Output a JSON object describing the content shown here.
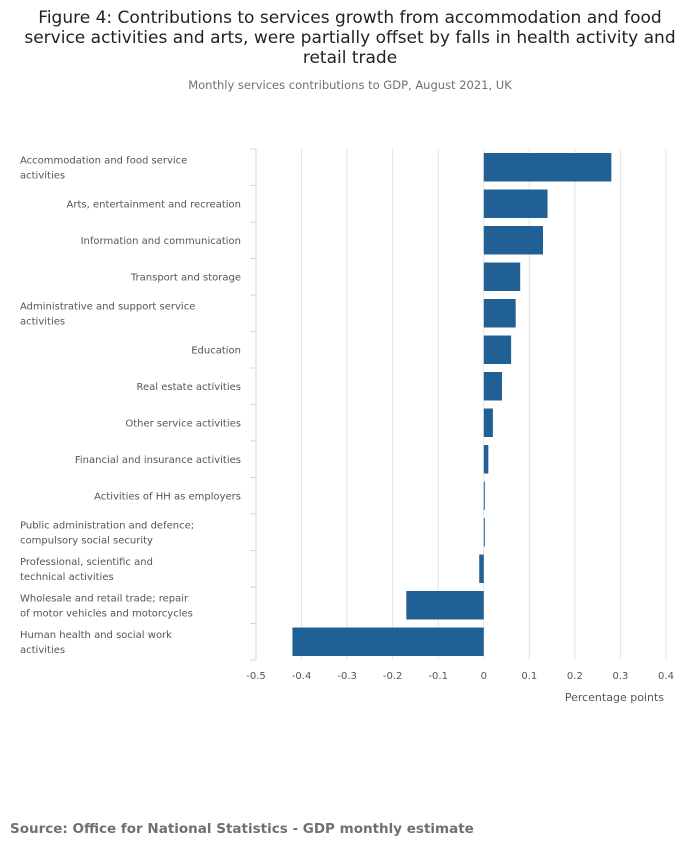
{
  "title": "Figure 4: Contributions to services growth from accommodation and food service activities and arts, were partially offset by falls in health activity and retail trade",
  "subtitle": "Monthly services contributions to GDP, August 2021, UK",
  "source": "Source: Office for National Statistics - GDP monthly estimate",
  "chart_data": {
    "type": "bar",
    "orientation": "horizontal",
    "categories": [
      "Accommodation and food service activities",
      "Arts, entertainment and recreation",
      "Information and communication",
      "Transport and storage",
      "Administrative and support service activities",
      "Education",
      "Real estate activities",
      "Other service activities",
      "Financial and insurance activities",
      "Activities of HH as employers",
      "Public administration and defence; compulsory social security",
      "Professional, scientific and technical activities",
      "Wholesale and retail trade; repair of motor vehicles and motorcycles",
      "Human health and social work activities"
    ],
    "values": [
      0.28,
      0.14,
      0.13,
      0.08,
      0.07,
      0.06,
      0.04,
      0.02,
      0.01,
      0.0,
      0.0,
      -0.01,
      -0.17,
      -0.42
    ],
    "xlim": [
      -0.5,
      0.4
    ],
    "xticks": [
      -0.5,
      -0.4,
      -0.3,
      -0.2,
      -0.1,
      0,
      0.1,
      0.2,
      0.3,
      0.4
    ],
    "xlabel": "Percentage points",
    "ylabel": "",
    "grid": true,
    "bar_color": "#206095"
  }
}
